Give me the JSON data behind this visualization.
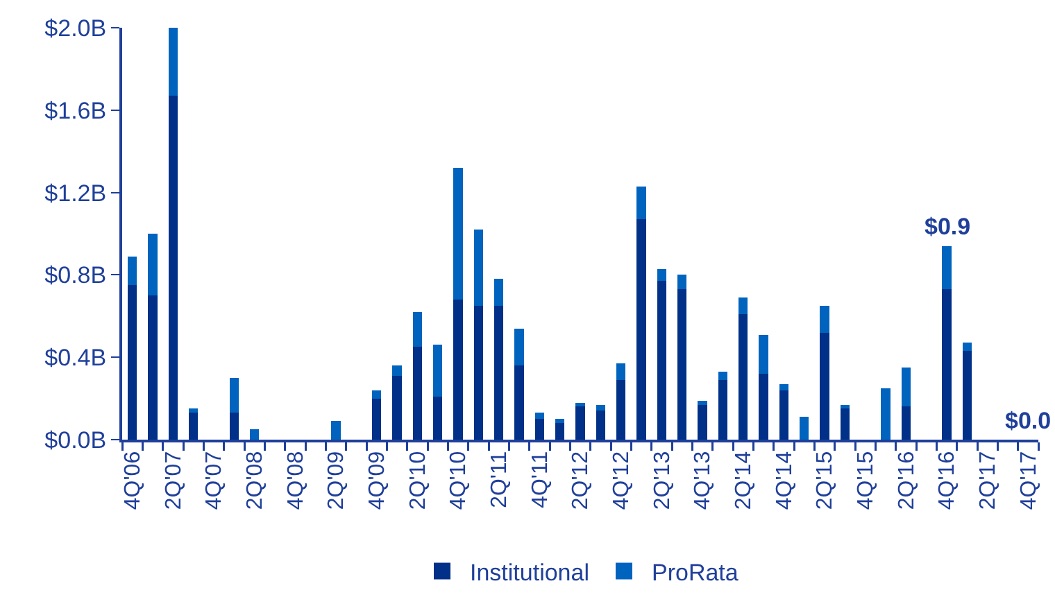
{
  "chart_data": {
    "type": "bar",
    "stacked": true,
    "categories": [
      "4Q'06",
      null,
      "2Q'07",
      null,
      "4Q'07",
      null,
      "2Q'08",
      null,
      "4Q'08",
      null,
      "2Q'09",
      null,
      "4Q'09",
      null,
      "2Q'10",
      null,
      "4Q'10",
      null,
      "2Q'11",
      null,
      "4Q'11",
      null,
      "2Q'12",
      null,
      "4Q'12",
      null,
      "2Q'13",
      null,
      "4Q'13",
      null,
      "2Q'14",
      null,
      "4Q'14",
      null,
      "2Q'15",
      null,
      "4Q'15",
      null,
      "2Q'16",
      null,
      "4Q'16",
      null,
      "2Q'17",
      null,
      "4Q'17"
    ],
    "series": [
      {
        "name": "Institutional",
        "color": "#003087",
        "values": [
          0.75,
          0.7,
          1.67,
          0.13,
          0,
          0.13,
          0,
          0,
          0,
          0,
          0,
          0,
          0.2,
          0.31,
          0.45,
          0.21,
          0.68,
          0.65,
          0.65,
          0.36,
          0.1,
          0.08,
          0.16,
          0.14,
          0.29,
          1.07,
          0.77,
          0.73,
          0.17,
          0.29,
          0.61,
          0.32,
          0.24,
          0,
          0.52,
          0.15,
          0,
          0,
          0.16,
          0,
          0.73,
          0.43,
          0,
          0,
          0
        ]
      },
      {
        "name": "ProRata",
        "color": "#0063be",
        "values": [
          0.14,
          0.3,
          0.33,
          0.02,
          0,
          0.17,
          0.05,
          0,
          0,
          0,
          0.09,
          0,
          0.04,
          0.05,
          0.17,
          0.25,
          0.64,
          0.37,
          0.13,
          0.18,
          0.03,
          0.02,
          0.02,
          0.03,
          0.08,
          0.16,
          0.06,
          0.07,
          0.02,
          0.04,
          0.08,
          0.19,
          0.03,
          0.11,
          0.13,
          0.02,
          0,
          0.25,
          0.19,
          0,
          0.21,
          0.04,
          0,
          0,
          0
        ]
      }
    ],
    "ylim": [
      0,
      2.0
    ],
    "yticks": [
      {
        "value": 0,
        "label": "$0.0B"
      },
      {
        "value": 0.4,
        "label": "$0.4B"
      },
      {
        "value": 0.8,
        "label": "$0.8B"
      },
      {
        "value": 1.2,
        "label": "$1.2B"
      },
      {
        "value": 1.6,
        "label": "$1.6B"
      },
      {
        "value": 2.0,
        "label": "$2.0B"
      }
    ],
    "annotations": [
      {
        "text": "$0.9",
        "x": "4Q'16",
        "y": 0.94
      },
      {
        "text": "$0.0",
        "x": "4Q'17",
        "y": 0
      }
    ],
    "grid": false,
    "legend": "bottom"
  }
}
